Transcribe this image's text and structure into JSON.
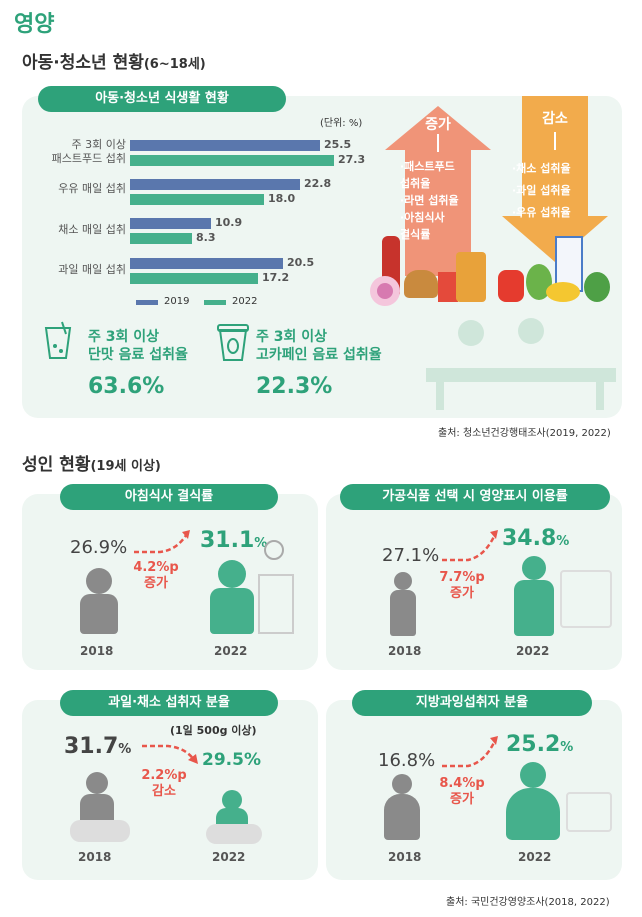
{
  "title": "영양",
  "youth": {
    "heading": "아동·청소년 현황",
    "heading_sub": "(6~18세)",
    "pill": "아동·청소년 식생활 현황",
    "unit": "(단위: %)",
    "rows": [
      {
        "label1": "주 3회 이상",
        "label2": "패스트푸드 섭취",
        "v2019": "25.5",
        "v2022": "27.3"
      },
      {
        "label1": "우유 매일 섭취",
        "label2": "",
        "v2019": "22.8",
        "v2022": "18.0"
      },
      {
        "label1": "채소 매일 섭취",
        "label2": "",
        "v2019": "10.9",
        "v2022": "8.3"
      },
      {
        "label1": "과일 매일 섭취",
        "label2": "",
        "v2019": "20.5",
        "v2022": "17.2"
      }
    ],
    "legend": {
      "y2019": "2019",
      "y2022": "2022"
    },
    "increase": {
      "title": "증가",
      "items": [
        "·패스트푸드",
        "섭취율",
        "·라면 섭취율",
        "·아침식사",
        "결식률"
      ]
    },
    "decrease": {
      "title": "감소",
      "items": [
        "·채소 섭취율",
        "·과일 섭취율",
        "·우유 섭취율"
      ]
    },
    "stat1": {
      "line1": "주 3회 이상",
      "line2": "단맛 음료 섭취율",
      "value": "63.6%"
    },
    "stat2": {
      "line1": "주 3회 이상",
      "line2": "고카페인 음료 섭취율",
      "value": "22.3%"
    },
    "source": "출처: 청소년건강행태조사(2019, 2022)"
  },
  "adult": {
    "heading": "성인 현황",
    "heading_sub": "(19세 이상)",
    "panels": [
      {
        "title": "아침식사 결식률",
        "v2018": "26.9%",
        "v2022": "31.1",
        "change1": "4.2%p",
        "change2": "증가",
        "y1": "2018",
        "y2": "2022",
        "note": ""
      },
      {
        "title": "가공식품 선택 시 영양표시 이용률",
        "v2018": "27.1%",
        "v2022": "34.8",
        "change1": "7.7%p",
        "change2": "증가",
        "y1": "2018",
        "y2": "2022",
        "note": ""
      },
      {
        "title": "과일·채소 섭취자 분율",
        "v2018": "31.7",
        "v2022": "29.5%",
        "change1": "2.2%p",
        "change2": "감소",
        "y1": "2018",
        "y2": "2022",
        "note": "(1일 500g 이상)"
      },
      {
        "title": "지방과잉섭취자 분율",
        "v2018": "16.8%",
        "v2022": "25.2",
        "change1": "8.4%p",
        "change2": "증가",
        "y1": "2018",
        "y2": "2022",
        "note": ""
      }
    ],
    "pct": "%",
    "source": "출처: 국민건강영양조사(2018, 2022)"
  },
  "colors": {
    "green": "#2ea27a",
    "blue": "#5a77ad",
    "teal": "#45b08c",
    "red": "#e8564b",
    "orange": "#f2a33a",
    "salmon": "#f08a6a"
  }
}
